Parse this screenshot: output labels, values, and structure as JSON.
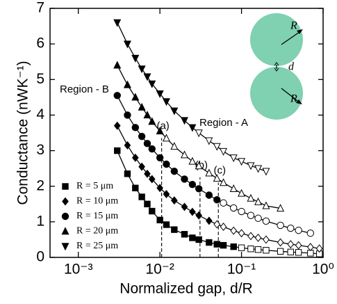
{
  "chart_data": {
    "type": "scatter",
    "xlabel": "Normalized gap, d/R",
    "ylabel": "Conductance (nWK⁻¹)",
    "log_x": true,
    "xlim": [
      0.00045,
      1
    ],
    "xticks": [
      {
        "value": 0.001,
        "label": "10⁻³"
      },
      {
        "value": 0.01,
        "label": "10⁻²"
      },
      {
        "value": 0.1,
        "label": "10⁻¹"
      },
      {
        "value": 1,
        "label": "10⁰"
      }
    ],
    "ylim": [
      0,
      7
    ],
    "yticks": [
      0,
      1,
      2,
      3,
      4,
      5,
      6,
      7
    ],
    "legend": "lower left",
    "series": [
      {
        "name": "R = 5 μm",
        "marker": "square",
        "color": "#000000",
        "open_from": 0.1,
        "x": [
          0.003,
          0.004,
          0.005,
          0.006,
          0.007,
          0.008,
          0.01,
          0.012,
          0.015,
          0.02,
          0.025,
          0.03,
          0.04,
          0.05,
          0.06,
          0.08,
          0.1,
          0.13,
          0.16,
          0.2,
          0.3,
          0.4,
          0.5,
          0.7,
          0.9
        ],
        "values": [
          3.0,
          2.35,
          1.95,
          1.7,
          1.5,
          1.3,
          1.05,
          0.92,
          0.78,
          0.65,
          0.55,
          0.5,
          0.42,
          0.37,
          0.34,
          0.3,
          0.27,
          0.24,
          0.22,
          0.2,
          0.17,
          0.15,
          0.14,
          0.12,
          0.1
        ]
      },
      {
        "name": "R = 10 μm",
        "marker": "diamond",
        "color": "#000000",
        "open_from": 0.05,
        "x": [
          0.003,
          0.004,
          0.005,
          0.006,
          0.007,
          0.008,
          0.01,
          0.012,
          0.015,
          0.02,
          0.025,
          0.03,
          0.04,
          0.05,
          0.06,
          0.08,
          0.1,
          0.13,
          0.16,
          0.2,
          0.3,
          0.4,
          0.5,
          0.7,
          0.9
        ],
        "values": [
          3.7,
          3.15,
          2.8,
          2.55,
          2.35,
          2.2,
          1.95,
          1.78,
          1.6,
          1.42,
          1.28,
          1.18,
          1.03,
          0.93,
          0.86,
          0.75,
          0.68,
          0.6,
          0.55,
          0.5,
          0.42,
          0.37,
          0.34,
          0.29,
          0.25
        ]
      },
      {
        "name": "R = 15 μm",
        "marker": "circle",
        "color": "#000000",
        "open_from": 0.06,
        "x": [
          0.003,
          0.004,
          0.005,
          0.006,
          0.007,
          0.008,
          0.01,
          0.012,
          0.015,
          0.02,
          0.025,
          0.03,
          0.04,
          0.05,
          0.06,
          0.08,
          0.1,
          0.13,
          0.16,
          0.2,
          0.3,
          0.4,
          0.5,
          0.7
        ],
        "values": [
          4.55,
          4.0,
          3.65,
          3.4,
          3.2,
          3.05,
          2.8,
          2.62,
          2.42,
          2.2,
          2.05,
          1.93,
          1.75,
          1.62,
          1.53,
          1.39,
          1.29,
          1.18,
          1.1,
          1.02,
          0.9,
          0.82,
          0.76,
          0.68
        ]
      },
      {
        "name": "R = 20 μm",
        "marker": "triangle",
        "color": "#000000",
        "open_from": 0.012,
        "x": [
          0.003,
          0.004,
          0.005,
          0.006,
          0.007,
          0.008,
          0.01,
          0.012,
          0.015,
          0.02,
          0.025,
          0.03,
          0.04,
          0.05,
          0.06,
          0.08,
          0.1,
          0.13,
          0.16,
          0.2,
          0.3
        ],
        "values": [
          5.4,
          4.85,
          4.5,
          4.22,
          4.0,
          3.82,
          3.55,
          3.35,
          3.12,
          2.88,
          2.7,
          2.57,
          2.37,
          2.22,
          2.1,
          1.93,
          1.8,
          1.66,
          1.56,
          1.45,
          1.38
        ]
      },
      {
        "name": "R = 25 μm",
        "marker": "triangle-down",
        "color": "#000000",
        "open_from": 0.03,
        "x": [
          0.003,
          0.004,
          0.005,
          0.006,
          0.007,
          0.008,
          0.01,
          0.012,
          0.015,
          0.02,
          0.025,
          0.03,
          0.04,
          0.05,
          0.06,
          0.08,
          0.1,
          0.13,
          0.16,
          0.2
        ],
        "values": [
          6.6,
          6.0,
          5.6,
          5.3,
          5.08,
          4.88,
          4.6,
          4.38,
          4.12,
          3.85,
          3.65,
          3.5,
          3.28,
          3.12,
          2.98,
          2.8,
          2.7,
          2.58,
          2.5,
          2.42
        ]
      }
    ],
    "markers": [
      {
        "label": "(a)",
        "x": 0.0105,
        "top": 3.35
      },
      {
        "label": "(b)",
        "x": 0.031,
        "top": 2.25
      },
      {
        "label": "(c)",
        "x": 0.052,
        "top": 2.1
      }
    ],
    "region_a": "Region - A",
    "region_b": "Region - B",
    "inset_labels": [
      "R",
      "d",
      "R"
    ]
  }
}
